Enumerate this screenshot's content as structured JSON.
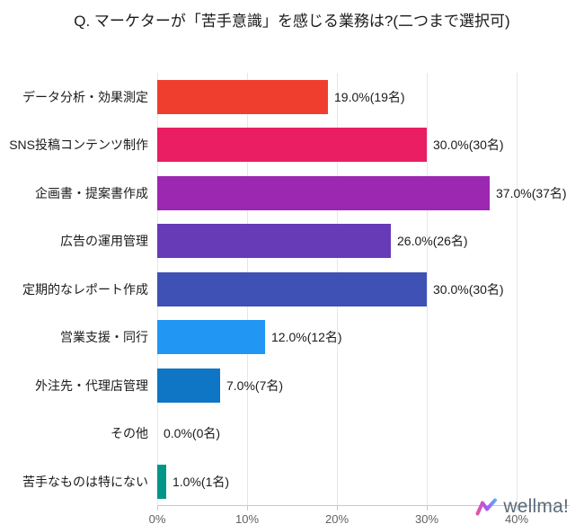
{
  "title": "Q. マーケターが「苦手意識」を感じる業務は?(二つまで選択可)",
  "chart_data": {
    "type": "bar",
    "orientation": "horizontal",
    "title": "Q. マーケターが「苦手意識」を感じる業務は?(二つまで選択可)",
    "categories": [
      "データ分析・効果測定",
      "SNS投稿コンテンツ制作",
      "企画書・提案書作成",
      "広告の運用管理",
      "定期的なレポート作成",
      "営業支援・同行",
      "外注先・代理店管理",
      "その他",
      "苦手なものは特にない"
    ],
    "values_percent": [
      19.0,
      30.0,
      37.0,
      26.0,
      30.0,
      12.0,
      7.0,
      0.0,
      1.0
    ],
    "counts": [
      19,
      30,
      37,
      26,
      30,
      12,
      7,
      0,
      1
    ],
    "value_labels": [
      "19.0%(19名)",
      "30.0%(30名)",
      "37.0%(37名)",
      "26.0%(26名)",
      "30.0%(30名)",
      "12.0%(12名)",
      "7.0%(7名)",
      "0.0%(0名)",
      "1.0%(1名)"
    ],
    "bar_colors": [
      "#f03e2e",
      "#e91e63",
      "#9c27b0",
      "#673ab7",
      "#3f51b5",
      "#2196f3",
      "#0e76c4",
      "#009688",
      "#009688"
    ],
    "x_ticks": [
      0,
      10,
      20,
      30,
      40
    ],
    "x_tick_labels": [
      "0%",
      "10%",
      "20%",
      "30%",
      "40%"
    ],
    "xlim": [
      0,
      45.9
    ],
    "grid": true,
    "legend": "none"
  },
  "style_colors": {
    "grid": "#e7e7e7",
    "axis_line": "#c9c9c9",
    "tick_text": "#616161",
    "label_text": "#1b1b1b",
    "background": "#ffffff"
  },
  "logo": {
    "text": "wellma!",
    "icon": "w-zigzag-icon",
    "text_color": "#5c6b7a",
    "icon_colors": [
      "#f0568c",
      "#a855f7",
      "#4fc3f7"
    ]
  }
}
